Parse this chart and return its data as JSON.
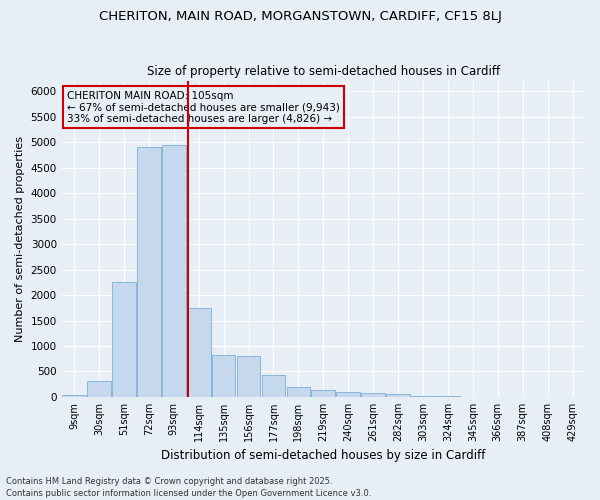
{
  "title1": "CHERITON, MAIN ROAD, MORGANSTOWN, CARDIFF, CF15 8LJ",
  "title2": "Size of property relative to semi-detached houses in Cardiff",
  "xlabel": "Distribution of semi-detached houses by size in Cardiff",
  "ylabel": "Number of semi-detached properties",
  "categories": [
    "9sqm",
    "30sqm",
    "51sqm",
    "72sqm",
    "93sqm",
    "114sqm",
    "135sqm",
    "156sqm",
    "177sqm",
    "198sqm",
    "219sqm",
    "240sqm",
    "261sqm",
    "282sqm",
    "303sqm",
    "324sqm",
    "345sqm",
    "366sqm",
    "387sqm",
    "408sqm",
    "429sqm"
  ],
  "values": [
    45,
    310,
    2250,
    4900,
    4950,
    1750,
    820,
    800,
    430,
    190,
    145,
    100,
    70,
    50,
    18,
    10,
    5,
    3,
    2,
    1,
    0
  ],
  "bar_color": "#c5d8ed",
  "bar_edge_color": "#7aafd4",
  "bg_color": "#e8eef5",
  "grid_color": "#ffffff",
  "vline_color": "#cc0000",
  "vline_pos": 4.57,
  "annotation_title": "CHERITON MAIN ROAD: 105sqm",
  "annotation_line1": "← 67% of semi-detached houses are smaller (9,943)",
  "annotation_line2": "33% of semi-detached houses are larger (4,826) →",
  "annotation_box_color": "#cc0000",
  "footer1": "Contains HM Land Registry data © Crown copyright and database right 2025.",
  "footer2": "Contains public sector information licensed under the Open Government Licence v3.0.",
  "ylim": [
    0,
    6200
  ],
  "yticks": [
    0,
    500,
    1000,
    1500,
    2000,
    2500,
    3000,
    3500,
    4000,
    4500,
    5000,
    5500,
    6000
  ]
}
